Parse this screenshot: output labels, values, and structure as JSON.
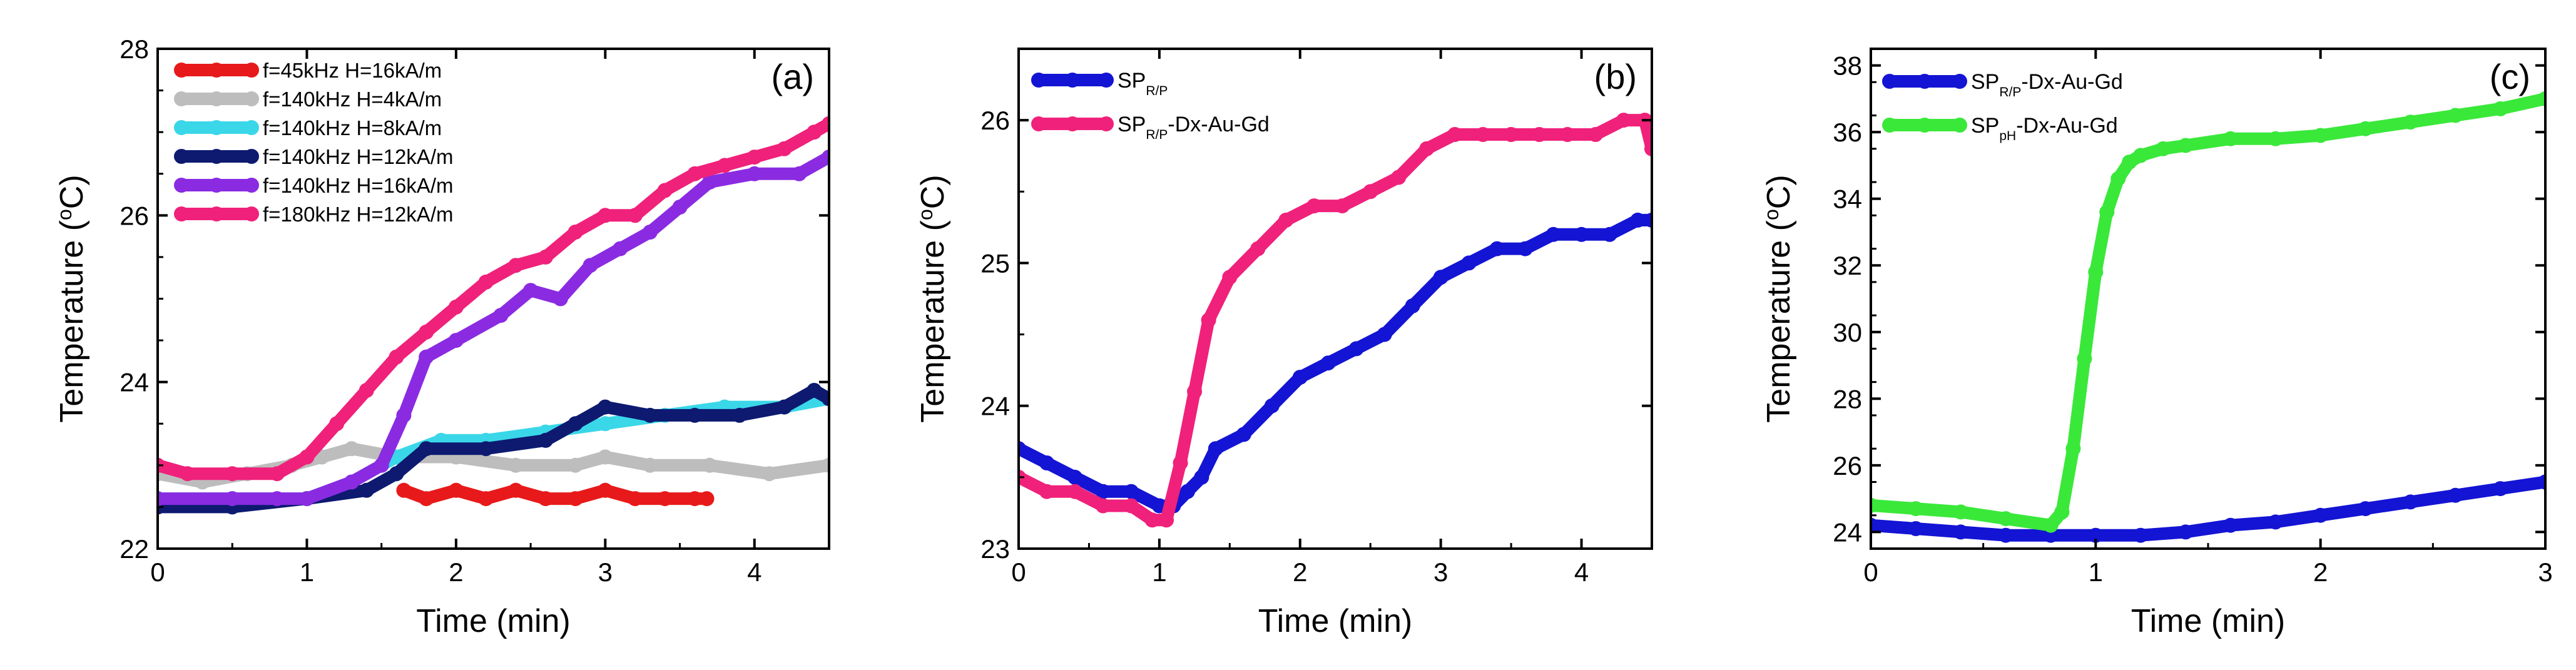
{
  "chart_data": [
    {
      "type": "line",
      "panel_label": "(a)",
      "xlabel": "Time (min)",
      "ylabel_prefix": "Temperature (",
      "ylabel_sup": "o",
      "ylabel_suffix": "C)",
      "xlim": [
        0,
        4.5
      ],
      "ylim": [
        22,
        28
      ],
      "xticks": [
        0,
        1,
        2,
        3,
        4
      ],
      "xtick_labels": [
        "0",
        "1",
        "2",
        "3",
        "4"
      ],
      "yticks": [
        22,
        24,
        26,
        28
      ],
      "ytick_labels": [
        "22",
        "24",
        "26",
        "28"
      ],
      "y_minor_step": 0.5,
      "legend_position": "top-left",
      "series": [
        {
          "name": "f=45kHz H=16kA/m",
          "legend": [
            {
              "t": "f=45kHz H=16kA/m"
            }
          ],
          "color": "#e8191a",
          "x": [
            1.65,
            1.8,
            2.0,
            2.2,
            2.4,
            2.6,
            2.8,
            3.0,
            3.2,
            3.4,
            3.6,
            3.68
          ],
          "y": [
            22.7,
            22.6,
            22.7,
            22.6,
            22.7,
            22.6,
            22.6,
            22.7,
            22.6,
            22.6,
            22.6,
            22.6
          ]
        },
        {
          "name": "f=140kHz H=4kA/m",
          "legend": [
            {
              "t": "f=140kHz H=4kA/m"
            }
          ],
          "color": "#bdbdbd",
          "x": [
            0,
            0.3,
            0.6,
            0.9,
            1.1,
            1.3,
            1.6,
            2.0,
            2.4,
            2.8,
            3.0,
            3.3,
            3.7,
            4.1,
            4.5
          ],
          "y": [
            22.9,
            22.8,
            22.9,
            23.0,
            23.1,
            23.2,
            23.1,
            23.1,
            23.0,
            23.0,
            23.1,
            23.0,
            23.0,
            22.9,
            23.0
          ]
        },
        {
          "name": "f=140kHz H=8kA/m",
          "legend": [
            {
              "t": "f=140kHz H=8kA/m"
            }
          ],
          "color": "#3ad7e8",
          "x": [
            0,
            0.5,
            1.0,
            1.3,
            1.6,
            1.9,
            2.2,
            2.6,
            3.0,
            3.4,
            3.8,
            4.2,
            4.5
          ],
          "y": [
            22.6,
            22.6,
            22.6,
            22.8,
            23.1,
            23.3,
            23.3,
            23.4,
            23.5,
            23.6,
            23.7,
            23.7,
            23.8
          ]
        },
        {
          "name": "f=140kHz H=12kA/m",
          "legend": [
            {
              "t": "f=140kHz H=12kA/m"
            }
          ],
          "color": "#0d1a70",
          "x": [
            0,
            0.5,
            1.0,
            1.4,
            1.6,
            1.8,
            2.2,
            2.6,
            2.8,
            3.0,
            3.3,
            3.6,
            3.9,
            4.2,
            4.4,
            4.5
          ],
          "y": [
            22.5,
            22.5,
            22.6,
            22.7,
            22.9,
            23.2,
            23.2,
            23.3,
            23.5,
            23.7,
            23.6,
            23.6,
            23.6,
            23.7,
            23.9,
            23.8
          ]
        },
        {
          "name": "f=140kHz H=16kA/m",
          "legend": [
            {
              "t": "f=140kHz H=16kA/m"
            }
          ],
          "color": "#8a2be2",
          "x": [
            0,
            0.5,
            0.8,
            1.0,
            1.3,
            1.5,
            1.65,
            1.8,
            2.0,
            2.3,
            2.5,
            2.7,
            2.9,
            3.1,
            3.3,
            3.5,
            3.7,
            4.0,
            4.3,
            4.5
          ],
          "y": [
            22.6,
            22.6,
            22.6,
            22.6,
            22.8,
            23.0,
            23.6,
            24.3,
            24.5,
            24.8,
            25.1,
            25.0,
            25.4,
            25.6,
            25.8,
            26.1,
            26.4,
            26.5,
            26.5,
            26.7
          ]
        },
        {
          "name": "f=180kHz H=12kA/m",
          "legend": [
            {
              "t": "f=180kHz H=12kA/m"
            }
          ],
          "color": "#f0217a",
          "x": [
            0,
            0.2,
            0.5,
            0.8,
            1.0,
            1.2,
            1.4,
            1.6,
            1.8,
            2.0,
            2.2,
            2.4,
            2.6,
            2.8,
            3.0,
            3.2,
            3.4,
            3.6,
            3.8,
            4.0,
            4.2,
            4.4,
            4.5
          ],
          "y": [
            23.0,
            22.9,
            22.9,
            22.9,
            23.1,
            23.5,
            23.9,
            24.3,
            24.6,
            24.9,
            25.2,
            25.4,
            25.5,
            25.8,
            26.0,
            26.0,
            26.3,
            26.5,
            26.6,
            26.7,
            26.8,
            27.0,
            27.1
          ]
        }
      ]
    },
    {
      "type": "line",
      "panel_label": "(b)",
      "xlabel": "Time (min)",
      "ylabel_prefix": "Temperature (",
      "ylabel_sup": "o",
      "ylabel_suffix": "C)",
      "xlim": [
        0,
        4.5
      ],
      "ylim": [
        23,
        26.5
      ],
      "xticks": [
        0,
        1,
        2,
        3,
        4
      ],
      "xtick_labels": [
        "0",
        "1",
        "2",
        "3",
        "4"
      ],
      "yticks": [
        23,
        24,
        25,
        26
      ],
      "ytick_labels": [
        "23",
        "24",
        "25",
        "26"
      ],
      "y_minor_step": 0.5,
      "legend_position": "top-left",
      "series": [
        {
          "name": "SPR/P",
          "legend": [
            {
              "t": "SP"
            },
            {
              "t": "R/P",
              "sub": true
            }
          ],
          "color": "#1414d4",
          "x": [
            0,
            0.2,
            0.4,
            0.6,
            0.8,
            1.0,
            1.1,
            1.2,
            1.3,
            1.4,
            1.6,
            1.8,
            2.0,
            2.2,
            2.4,
            2.6,
            2.8,
            3.0,
            3.2,
            3.4,
            3.6,
            3.8,
            4.0,
            4.2,
            4.4,
            4.5
          ],
          "y": [
            23.7,
            23.6,
            23.5,
            23.4,
            23.4,
            23.3,
            23.3,
            23.4,
            23.5,
            23.7,
            23.8,
            24.0,
            24.2,
            24.3,
            24.4,
            24.5,
            24.7,
            24.9,
            25.0,
            25.1,
            25.1,
            25.2,
            25.2,
            25.2,
            25.3,
            25.3
          ]
        },
        {
          "name": "SPR/P-Dx-Au-Gd",
          "legend": [
            {
              "t": "SP"
            },
            {
              "t": "R/P",
              "sub": true
            },
            {
              "t": "-Dx-Au-Gd"
            }
          ],
          "color": "#f0217a",
          "x": [
            0,
            0.2,
            0.4,
            0.6,
            0.8,
            0.95,
            1.05,
            1.15,
            1.25,
            1.35,
            1.5,
            1.7,
            1.9,
            2.1,
            2.3,
            2.5,
            2.7,
            2.9,
            3.1,
            3.3,
            3.5,
            3.7,
            3.9,
            4.1,
            4.3,
            4.45,
            4.5
          ],
          "y": [
            23.5,
            23.4,
            23.4,
            23.3,
            23.3,
            23.2,
            23.2,
            23.6,
            24.1,
            24.6,
            24.9,
            25.1,
            25.3,
            25.4,
            25.4,
            25.5,
            25.6,
            25.8,
            25.9,
            25.9,
            25.9,
            25.9,
            25.9,
            25.9,
            26.0,
            26.0,
            25.8
          ]
        }
      ]
    },
    {
      "type": "line",
      "panel_label": "(c)",
      "xlabel": "Time (min)",
      "ylabel_prefix": "Temperature (",
      "ylabel_sup": "o",
      "ylabel_suffix": "C)",
      "xlim": [
        0,
        3
      ],
      "ylim": [
        23.5,
        38.5
      ],
      "xticks": [
        0,
        1,
        2,
        3
      ],
      "xtick_labels": [
        "0",
        "1",
        "2",
        "3"
      ],
      "yticks": [
        24,
        26,
        28,
        30,
        32,
        34,
        36,
        38
      ],
      "ytick_labels": [
        "24",
        "26",
        "28",
        "30",
        "32",
        "34",
        "36",
        "38"
      ],
      "y_minor_step": 1,
      "legend_position": "top-left",
      "series": [
        {
          "name": "SPR/P-Dx-Au-Gd",
          "legend": [
            {
              "t": "SP"
            },
            {
              "t": "R/P",
              "sub": true
            },
            {
              "t": "-Dx-Au-Gd"
            }
          ],
          "color": "#1414d4",
          "x": [
            0,
            0.2,
            0.4,
            0.6,
            0.8,
            1.0,
            1.2,
            1.4,
            1.6,
            1.8,
            2.0,
            2.2,
            2.4,
            2.6,
            2.8,
            3.0
          ],
          "y": [
            24.2,
            24.1,
            24.0,
            23.9,
            23.9,
            23.9,
            23.9,
            24.0,
            24.2,
            24.3,
            24.5,
            24.7,
            24.9,
            25.1,
            25.3,
            25.5
          ]
        },
        {
          "name": "SPpH-Dx-Au-Gd",
          "legend": [
            {
              "t": "SP"
            },
            {
              "t": "pH",
              "sub": true
            },
            {
              "t": "-Dx-Au-Gd"
            }
          ],
          "color": "#3ae83a",
          "x": [
            0,
            0.2,
            0.4,
            0.6,
            0.8,
            0.85,
            0.9,
            0.95,
            1.0,
            1.05,
            1.1,
            1.15,
            1.2,
            1.3,
            1.4,
            1.6,
            1.8,
            2.0,
            2.2,
            2.4,
            2.6,
            2.8,
            3.0
          ],
          "y": [
            24.8,
            24.7,
            24.6,
            24.4,
            24.2,
            24.6,
            26.5,
            29.2,
            31.8,
            33.6,
            34.6,
            35.1,
            35.3,
            35.5,
            35.6,
            35.8,
            35.8,
            35.9,
            36.1,
            36.3,
            36.5,
            36.7,
            37.0
          ]
        }
      ]
    }
  ]
}
